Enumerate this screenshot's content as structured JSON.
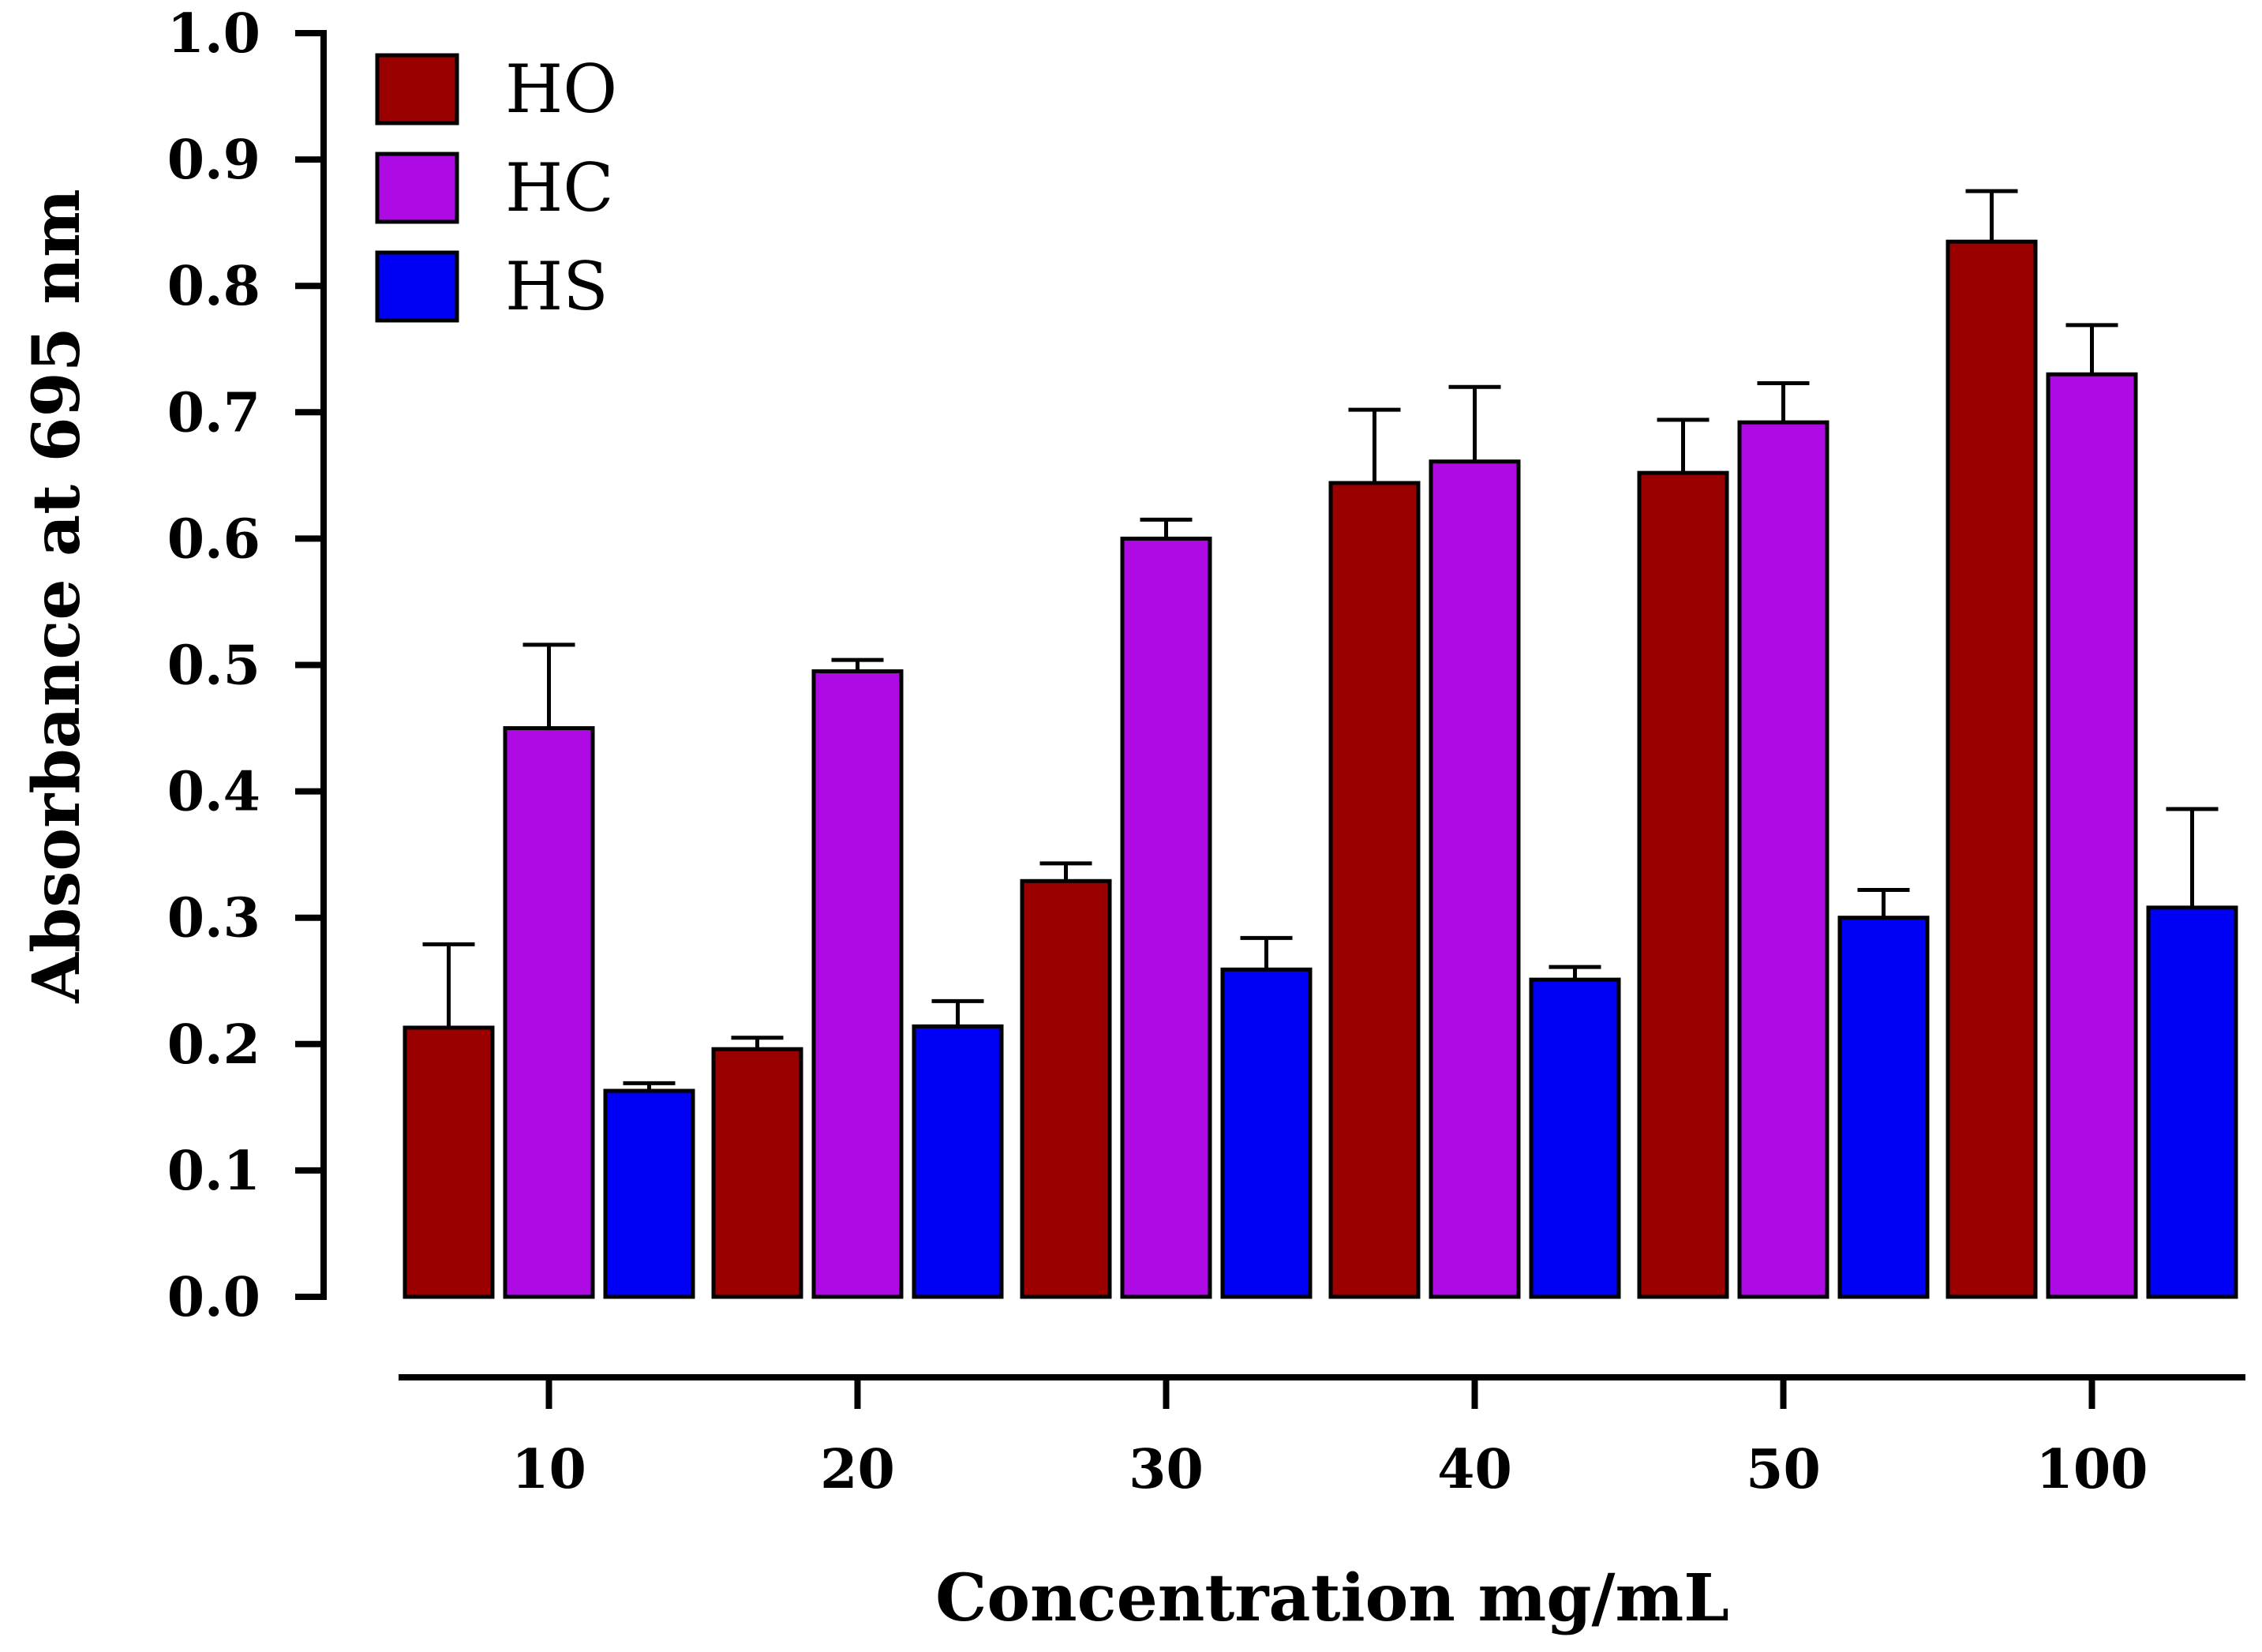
{
  "chart_data": {
    "type": "bar",
    "title": "",
    "xlabel": "Concentration mg/mL",
    "ylabel": "Absorbance at 695 nm",
    "categories": [
      "10",
      "20",
      "30",
      "40",
      "50",
      "100"
    ],
    "ylim": [
      0.0,
      1.0
    ],
    "yticks": [
      "0.0",
      "0.1",
      "0.2",
      "0.3",
      "0.4",
      "0.5",
      "0.6",
      "0.7",
      "0.8",
      "0.9",
      "1.0"
    ],
    "legend_position": "top-left",
    "grid": false,
    "series": [
      {
        "name": "HO",
        "color": "#9b0000",
        "values": [
          0.213,
          0.196,
          0.329,
          0.644,
          0.652,
          0.835
        ],
        "errors": [
          0.066,
          0.009,
          0.014,
          0.058,
          0.042,
          0.04
        ]
      },
      {
        "name": "HC",
        "color": "#ad0ae4",
        "values": [
          0.45,
          0.495,
          0.6,
          0.661,
          0.692,
          0.73
        ],
        "errors": [
          0.066,
          0.009,
          0.015,
          0.059,
          0.031,
          0.039
        ]
      },
      {
        "name": "HS",
        "color": "#0000f4",
        "values": [
          0.163,
          0.214,
          0.259,
          0.251,
          0.3,
          0.308
        ],
        "errors": [
          0.006,
          0.02,
          0.025,
          0.01,
          0.022,
          0.078
        ]
      }
    ]
  }
}
